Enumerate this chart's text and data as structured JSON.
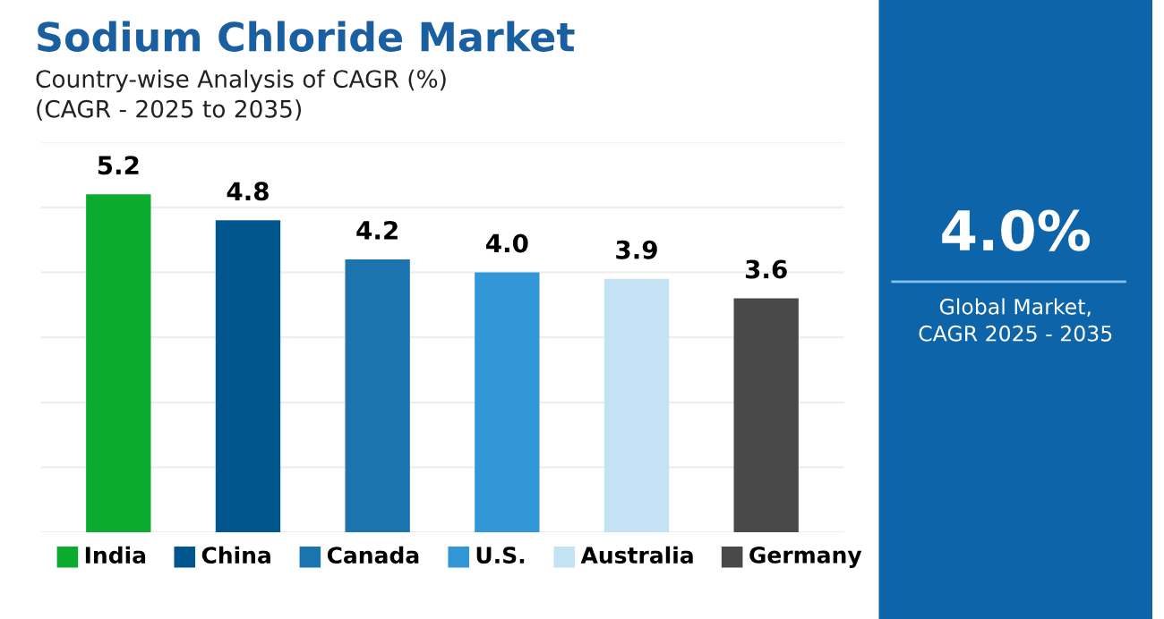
{
  "chart_data": [
    {
      "type": "bar",
      "title": "Sodium Chloride Market",
      "subtitle": "Country-wise Analysis of CAGR (%)\n(CAGR - 2025 to 2035)",
      "categories": [
        "India",
        "China",
        "Canada",
        "U.S.",
        "Australia",
        "Germany"
      ],
      "values": [
        5.2,
        4.8,
        4.2,
        4.0,
        3.9,
        3.6
      ],
      "value_labels": [
        "5.2",
        "4.8",
        "4.2",
        "4.0",
        "3.9",
        "3.6"
      ],
      "colors": [
        "#0aab2f",
        "#02568e",
        "#1b74ae",
        "#3197d6",
        "#c3e2f4",
        "#494949"
      ],
      "ylim": [
        0,
        6
      ],
      "yticks": [
        {
          "value": 0,
          "label": null
        },
        {
          "value": 1,
          "label": null
        },
        {
          "value": 2,
          "label": null
        },
        {
          "value": 3,
          "label": null
        },
        {
          "value": 4,
          "label": null
        },
        {
          "value": 5,
          "label": null
        },
        {
          "value": 6,
          "label": null
        }
      ],
      "tick_labels": false,
      "grid": "y"
    },
    {
      "type": "other",
      "title": "4.0%",
      "annotations": [
        "Global Market,\nCAGR 2025 - 2035"
      ]
    }
  ]
}
